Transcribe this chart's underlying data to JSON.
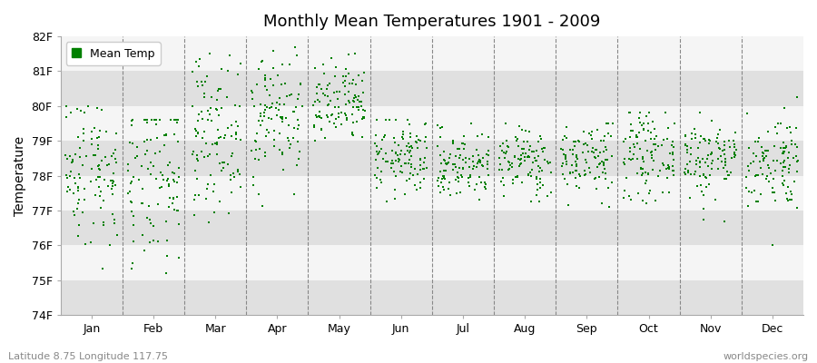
{
  "title": "Monthly Mean Temperatures 1901 - 2009",
  "ylabel": "Temperature",
  "bottom_left_label": "Latitude 8.75 Longitude 117.75",
  "bottom_right_label": "worldspecies.org",
  "ylim": [
    74,
    82
  ],
  "yticks": [
    74,
    75,
    76,
    77,
    78,
    79,
    80,
    81,
    82
  ],
  "ytick_labels": [
    "74F",
    "75F",
    "76F",
    "77F",
    "78F",
    "79F",
    "80F",
    "81F",
    "82F"
  ],
  "months": [
    "Jan",
    "Feb",
    "Mar",
    "Apr",
    "May",
    "Jun",
    "Jul",
    "Aug",
    "Sep",
    "Oct",
    "Nov",
    "Dec"
  ],
  "n_years": 109,
  "seed": 42,
  "marker_color": "#008000",
  "background_color": "#F0F0F0",
  "band_color_light": "#F5F5F5",
  "band_color_dark": "#E0E0E0",
  "mean_temps_F": [
    78.2,
    77.8,
    79.2,
    79.8,
    80.0,
    78.5,
    78.3,
    78.4,
    78.5,
    78.6,
    78.5,
    78.4
  ],
  "std_temps_F": [
    1.1,
    1.3,
    1.1,
    1.0,
    0.6,
    0.55,
    0.5,
    0.5,
    0.55,
    0.6,
    0.6,
    0.7
  ],
  "min_temps_F": [
    74.3,
    74.1,
    76.5,
    77.0,
    78.5,
    77.1,
    77.0,
    77.0,
    77.1,
    77.2,
    76.4,
    76.0
  ],
  "max_temps_F": [
    80.0,
    79.6,
    81.5,
    82.5,
    81.5,
    79.6,
    79.5,
    79.5,
    79.5,
    79.8,
    79.8,
    80.5
  ],
  "legend_label": "Mean Temp",
  "figsize": [
    9.0,
    4.0
  ],
  "dpi": 100
}
